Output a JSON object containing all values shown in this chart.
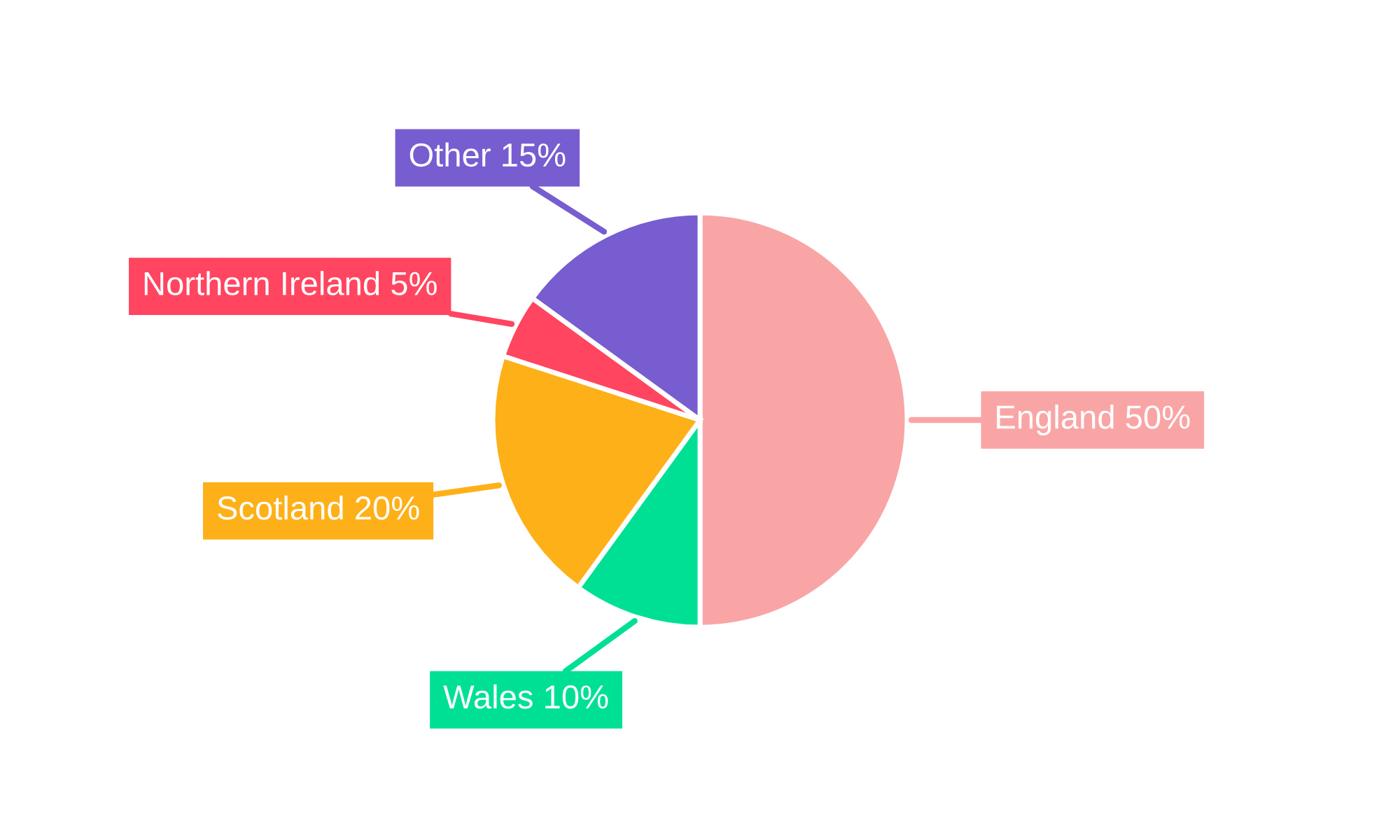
{
  "chart_data": {
    "type": "pie",
    "categories": [
      "England",
      "Wales",
      "Scotland",
      "Northern Ireland",
      "Other"
    ],
    "values": [
      50,
      10,
      20,
      5,
      15
    ],
    "value_labels": [
      "50%",
      "10%",
      "20%",
      "5%",
      "15%"
    ],
    "colors": [
      "#f9a5a6",
      "#00e095",
      "#feb019",
      "#ff4560",
      "#775dd0"
    ],
    "legend": false
  }
}
